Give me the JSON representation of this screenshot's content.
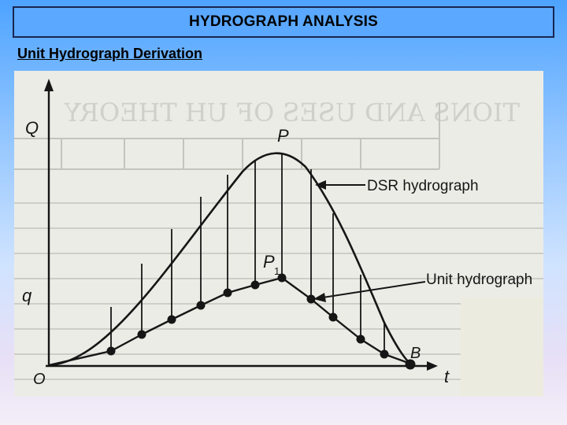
{
  "slide": {
    "title": "HYDROGRAPH ANALYSIS",
    "subtitle": "Unit Hydrograph Derivation"
  },
  "diagram": {
    "y_axis_label": "Q",
    "q_label": "q",
    "x_axis_label": "t",
    "origin_label": "O",
    "peak_label": "P",
    "unit_peak_label": "P",
    "unit_peak_subscript": "1",
    "end_label": "B",
    "dsr_label": "DSR hydrograph",
    "unit_label": "Unit hydrograph",
    "ghost_heading": "TIONS AND USES OF UH THEORY"
  },
  "colors": {
    "ink": "#161616",
    "paper": "#ecece6",
    "ghost": "#b9b9b2",
    "title_bg": "#5aa8ff",
    "title_border": "#1a2550"
  }
}
